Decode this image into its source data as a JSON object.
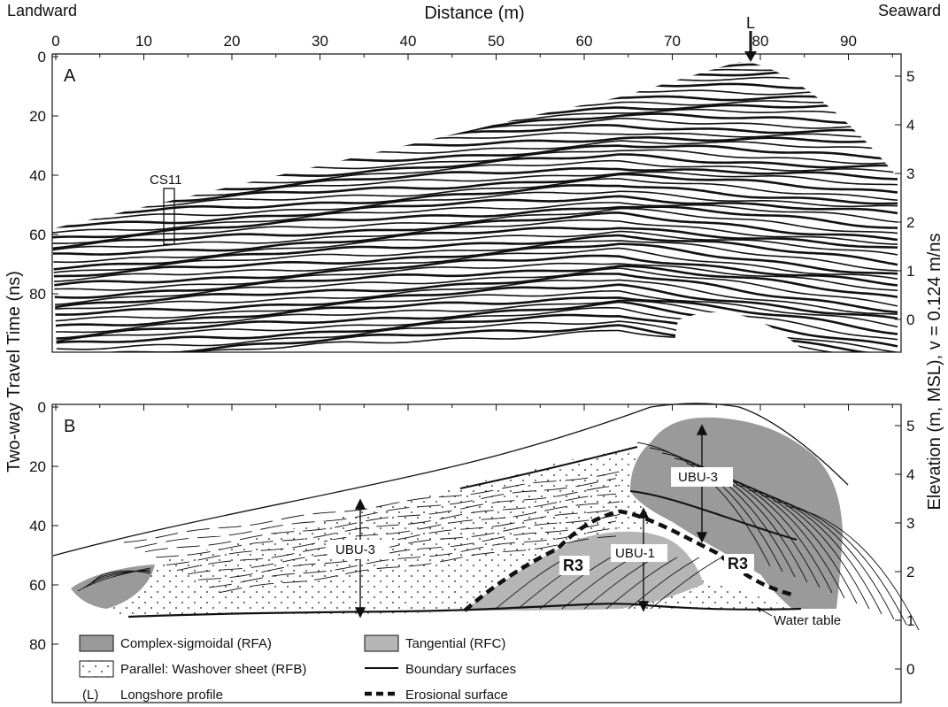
{
  "header": {
    "landward": "Landward",
    "seaward": "Seaward",
    "x_title": "Distance  (m)",
    "marker_L": "L"
  },
  "axes": {
    "left_title": "Two-way Travel Time (ns)",
    "right_title": "Elevation (m, MSL),  v = 0.124 m/ns",
    "x_ticks": [
      "0",
      "10",
      "20",
      "30",
      "40",
      "50",
      "60",
      "70",
      "80",
      "90"
    ],
    "twt_ticks_a": [
      "0",
      "20",
      "40",
      "60",
      "80"
    ],
    "twt_ticks_b": [
      "0",
      "20",
      "40",
      "60",
      "80"
    ],
    "elev_ticks_a": [
      "5",
      "4",
      "3",
      "2",
      "1",
      "0"
    ],
    "elev_ticks_b": [
      "5",
      "4",
      "3",
      "2",
      "1",
      "0"
    ]
  },
  "panel_a": {
    "label": "A",
    "core_label": "CS11"
  },
  "panel_b": {
    "label": "B",
    "units": {
      "ubu3_left": "UBU-3",
      "ubu3_right": "UBU-3",
      "ubu1": "UBU-1",
      "r3_left": "R3",
      "r3_right": "R3",
      "water_table": "Water table"
    }
  },
  "legend": {
    "complex": "Complex-sigmoidal (RFA)",
    "tangential": "Tangential (RFC)",
    "parallel": "Parallel: Washover sheet (RFB)",
    "boundary": "Boundary surfaces",
    "longshore_symbol": "(L)",
    "longshore": "Longshore profile",
    "erosional": "Erosional surface"
  },
  "colors": {
    "complex_fill": "#9a9a9a",
    "tangential_fill": "#b5b5b5",
    "line": "#111111"
  }
}
